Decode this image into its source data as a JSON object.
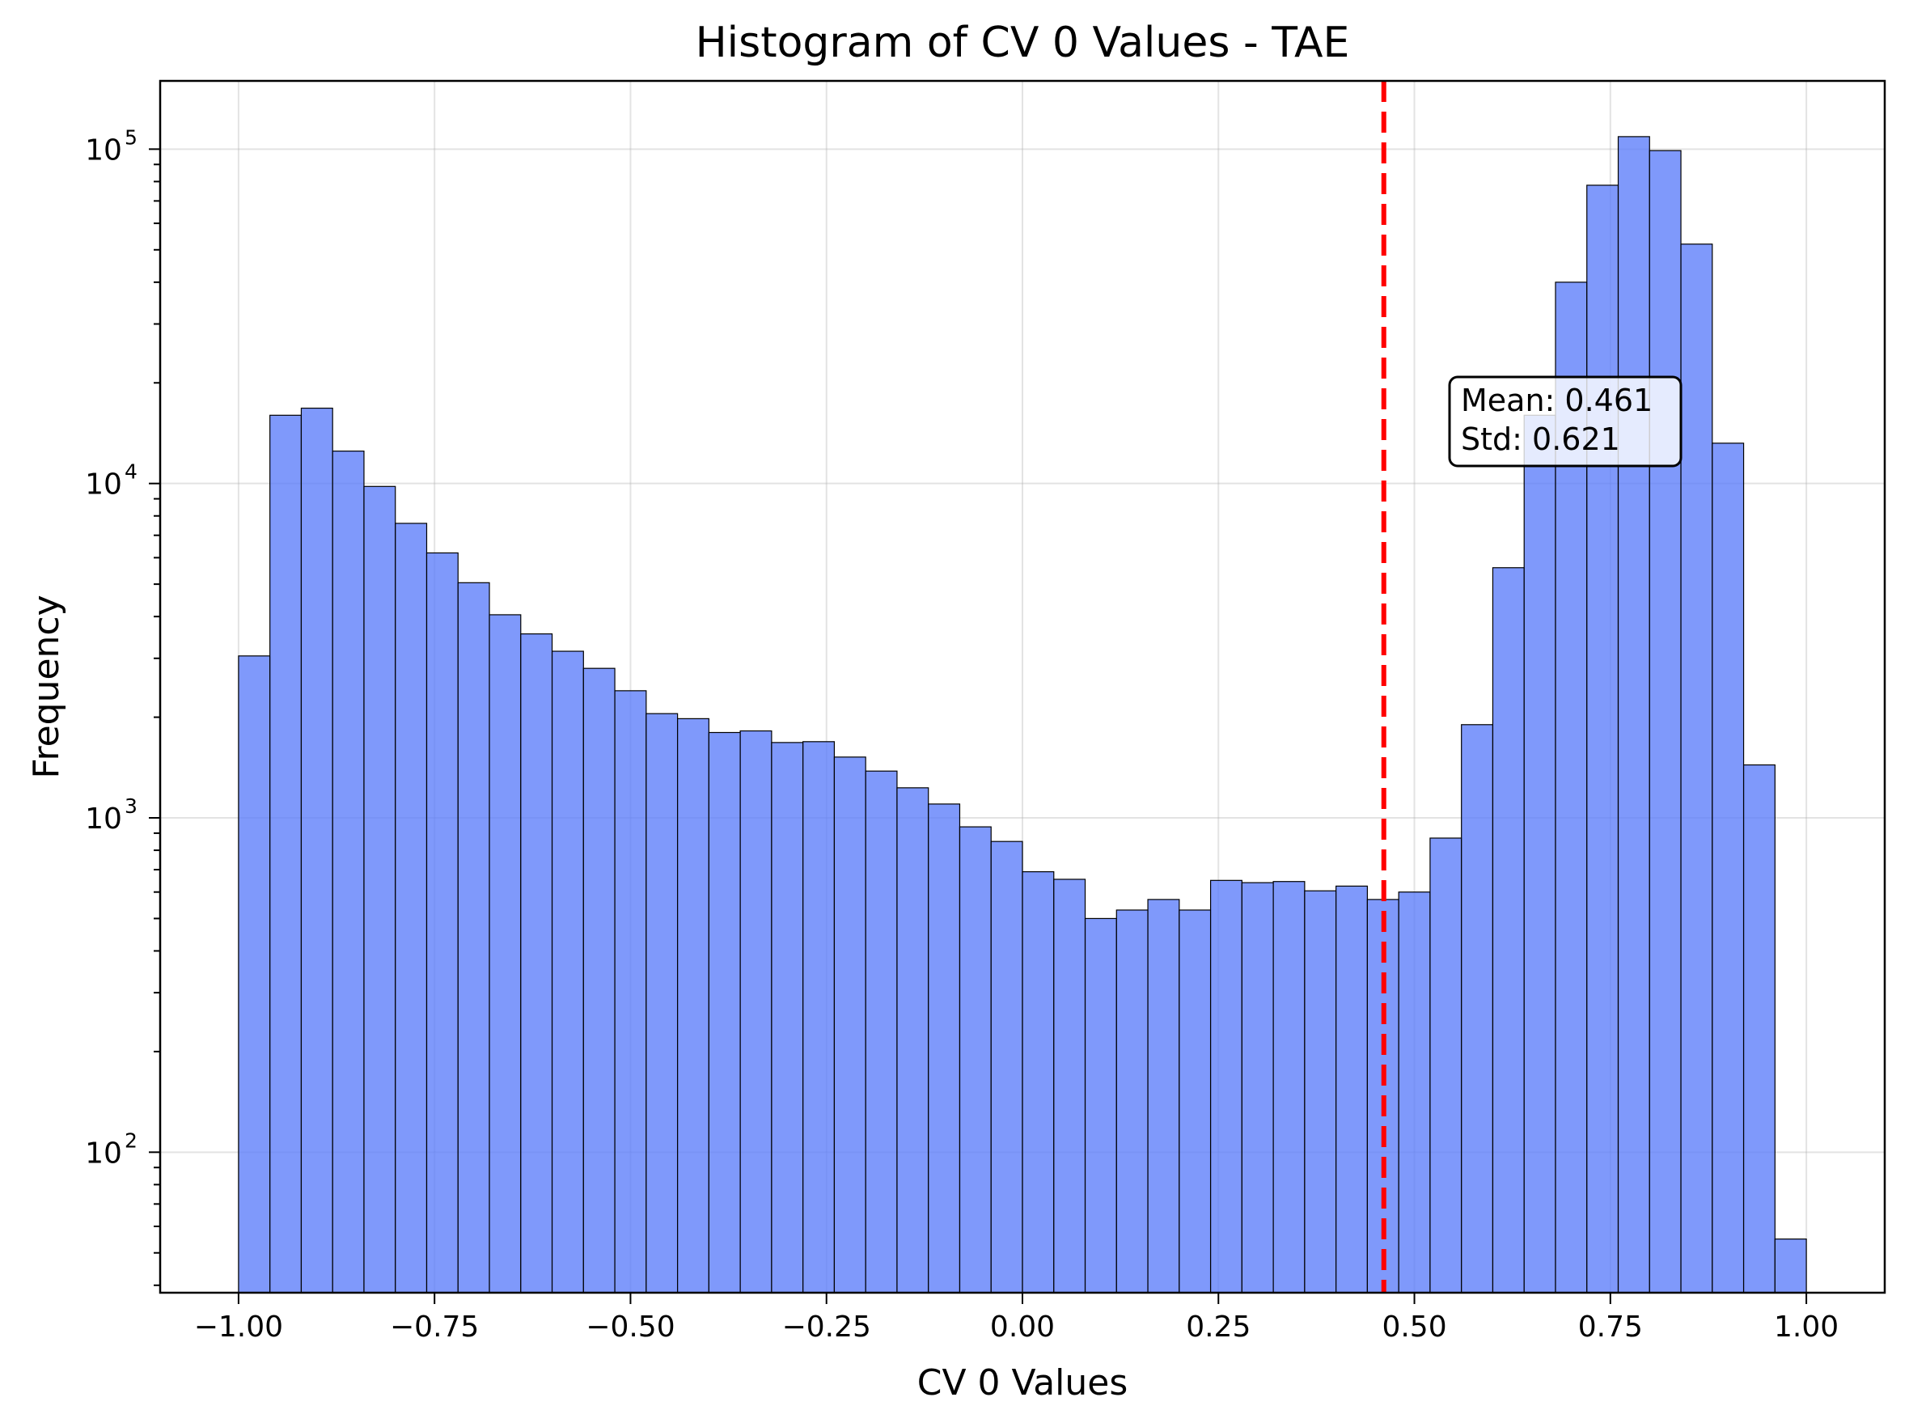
{
  "chart_data": {
    "type": "bar",
    "title": "Histogram of CV 0 Values - TAE",
    "xlabel": "CV 0 Values",
    "ylabel": "Frequency",
    "yscale": "log",
    "xlim": [
      -1.1,
      1.1
    ],
    "ylim": [
      38,
      160000
    ],
    "grid": true,
    "bar_color": "#5b7cfa",
    "bar_edge_color": "#000000",
    "mean_line_color": "#ff0000",
    "mean": 0.461,
    "bin_edges_start": -1.0,
    "bin_width": 0.04,
    "values": [
      3050,
      16000,
      16800,
      12500,
      9800,
      7600,
      6200,
      5050,
      4050,
      3550,
      3150,
      2800,
      2400,
      2050,
      1980,
      1800,
      1820,
      1680,
      1690,
      1520,
      1380,
      1230,
      1100,
      940,
      850,
      690,
      655,
      500,
      530,
      570,
      530,
      650,
      640,
      645,
      605,
      625,
      570,
      600,
      870,
      1900,
      5600,
      16000,
      40000,
      78000,
      109000,
      99000,
      52000,
      13200,
      1440,
      55
    ],
    "xticks": [
      -1.0,
      -0.75,
      -0.5,
      -0.25,
      0.0,
      0.25,
      0.5,
      0.75,
      1.0
    ],
    "xtick_labels": [
      "−1.00",
      "−0.75",
      "−0.50",
      "−0.25",
      "0.00",
      "0.25",
      "0.50",
      "0.75",
      "1.00"
    ],
    "yticks": [
      {
        "value": 100,
        "base": "10",
        "exp": "2"
      },
      {
        "value": 1000,
        "base": "10",
        "exp": "3"
      },
      {
        "value": 10000,
        "base": "10",
        "exp": "4"
      },
      {
        "value": 100000,
        "base": "10",
        "exp": "5"
      }
    ],
    "stats_box": {
      "mean_text": "Mean: 0.461",
      "std_text": "Std: 0.621"
    }
  }
}
